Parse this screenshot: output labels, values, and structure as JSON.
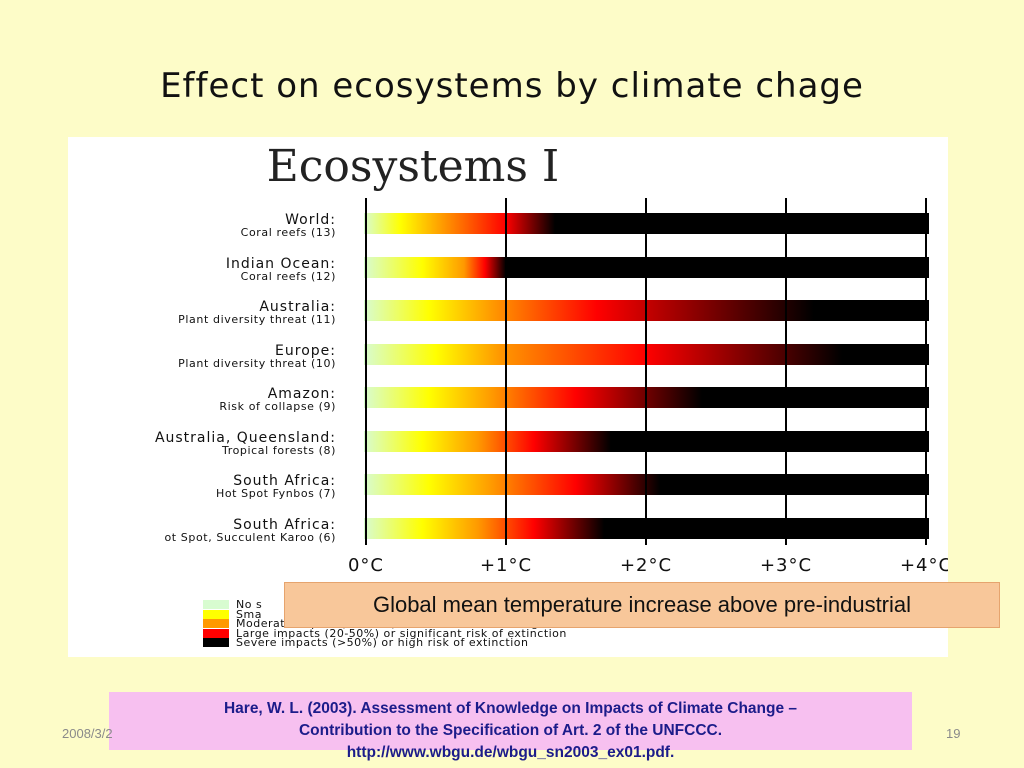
{
  "slide": {
    "title": "Effect on ecosystems by climate chage",
    "date": "2008/3/2",
    "page_number": "19"
  },
  "overlay_label": "Global mean temperature increase above pre-industrial",
  "citation": {
    "line1": "Hare, W. L. (2003). Assessment of Knowledge on Impacts of Climate Change –",
    "line2": "Contribution to the  Specification of Art. 2 of the UNFCCC.",
    "line3": "http://www.wbgu.de/wbgu_sn2003_ex01.pdf."
  },
  "chart_data": {
    "type": "bar",
    "title": "Ecosystems I",
    "x_ticks": [
      "0°C",
      "+1°C",
      "+2°C",
      "+3°C",
      "+4°C"
    ],
    "xlim": [
      0,
      4
    ],
    "colors": {
      "none": "#d8fcd0",
      "small": "#ffff00",
      "moderate": "#ff9900",
      "large": "#ff0000",
      "severe": "#000000"
    },
    "categories": [
      {
        "name": "World:",
        "detail": "Coral reefs (13)",
        "stops": [
          0.25,
          0.55,
          1.0,
          1.35
        ]
      },
      {
        "name": "Indian Ocean:",
        "detail": "Coral reefs (12)",
        "stops": [
          0.4,
          0.7,
          0.85,
          1.0
        ]
      },
      {
        "name": "Australia:",
        "detail": "Plant diversity threat (11)",
        "stops": [
          0.45,
          0.9,
          1.65,
          3.2
        ]
      },
      {
        "name": "Europe:",
        "detail": "Plant diversity threat (10)",
        "stops": [
          0.5,
          0.95,
          2.0,
          3.4
        ]
      },
      {
        "name": "Amazon:",
        "detail": "Risk of collapse (9)",
        "stops": [
          0.45,
          0.9,
          1.5,
          2.4
        ]
      },
      {
        "name": "Australia, Queensland:",
        "detail": "Tropical forests (8)",
        "stops": [
          0.4,
          0.8,
          1.2,
          1.75
        ]
      },
      {
        "name": "South Africa:",
        "detail": "Hot Spot Fynbos  (7)",
        "stops": [
          0.45,
          0.9,
          1.5,
          2.1
        ]
      },
      {
        "name": "South Africa:",
        "detail": "ot Spot, Succulent Karoo (6)",
        "stops": [
          0.4,
          0.8,
          1.2,
          1.7
        ]
      }
    ],
    "legend": [
      {
        "key": "none",
        "label": "No s"
      },
      {
        "key": "small",
        "label": "Sma"
      },
      {
        "key": "moderate",
        "label": "Moderate impact (10-20%) or moderate risk of regional extinction"
      },
      {
        "key": "large",
        "label": "Large impacts (20-50%) or significant risk of extinction"
      },
      {
        "key": "severe",
        "label": "Severe impacts (>50%) or high risk of extinction"
      }
    ]
  }
}
